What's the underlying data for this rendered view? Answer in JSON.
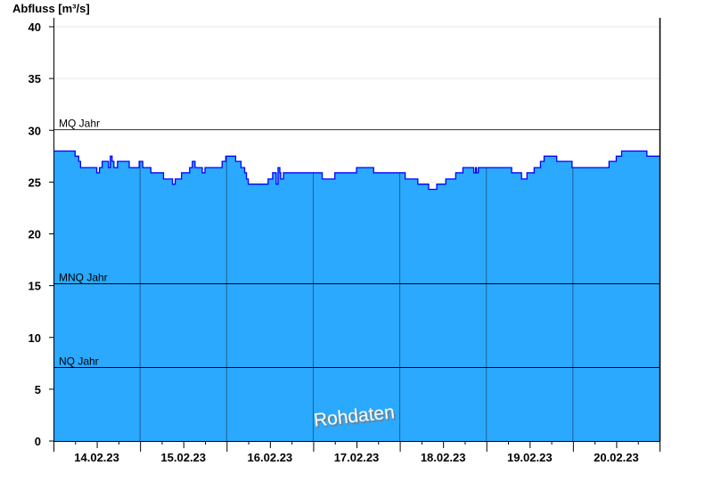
{
  "chart_data": {
    "type": "area",
    "ylabel": "Abfluss [m³/s]",
    "ylim": [
      0,
      40
    ],
    "yticks": [
      "0",
      "5",
      "10",
      "15",
      "20",
      "25",
      "30",
      "35",
      "40"
    ],
    "xlim": [
      "14.02.23 00:00",
      "21.02.23 00:00"
    ],
    "xtick_labels": [
      "14.02.23",
      "15.02.23",
      "16.02.23",
      "17.02.23",
      "18.02.23",
      "19.02.23",
      "20.02.23"
    ],
    "grid": true,
    "watermark": "Rohdaten",
    "colors": {
      "fill": "#2aa9ff",
      "line": "#0000ff",
      "mq": "#0a6e0a",
      "ref": "#000000"
    },
    "reference_lines": [
      {
        "label": "MQ Jahr",
        "value": 30.1
      },
      {
        "label": "MNQ Jahr",
        "value": 15.2
      },
      {
        "label": "NQ Jahr",
        "value": 7.1
      }
    ],
    "series": [
      {
        "step": true,
        "points": [
          [
            "14.02.23 00:00",
            28.0
          ],
          [
            "14.02.23 06:00",
            27.5
          ],
          [
            "14.02.23 07:00",
            27.0
          ],
          [
            "14.02.23 07:30",
            26.4
          ],
          [
            "14.02.23 12:00",
            25.9
          ],
          [
            "14.02.23 12:45",
            26.4
          ],
          [
            "14.02.23 13:30",
            27.0
          ],
          [
            "14.02.23 15:15",
            26.4
          ],
          [
            "14.02.23 15:45",
            27.5
          ],
          [
            "14.02.23 16:15",
            27.0
          ],
          [
            "14.02.23 16:45",
            26.4
          ],
          [
            "14.02.23 17:45",
            27.0
          ],
          [
            "14.02.23 21:00",
            26.4
          ],
          [
            "14.02.23 23:45",
            27.0
          ],
          [
            "15.02.23 00:45",
            26.4
          ],
          [
            "15.02.23 03:00",
            25.9
          ],
          [
            "15.02.23 06:30",
            25.3
          ],
          [
            "15.02.23 09:00",
            24.8
          ],
          [
            "15.02.23 09:45",
            25.3
          ],
          [
            "15.02.23 11:30",
            25.9
          ],
          [
            "15.02.23 13:45",
            26.4
          ],
          [
            "15.02.23 14:30",
            27.0
          ],
          [
            "15.02.23 15:15",
            26.4
          ],
          [
            "15.02.23 17:15",
            25.9
          ],
          [
            "15.02.23 18:00",
            26.4
          ],
          [
            "15.02.23 22:45",
            27.0
          ],
          [
            "15.02.23 23:45",
            27.5
          ],
          [
            "16.02.23 02:30",
            27.0
          ],
          [
            "16.02.23 04:00",
            26.4
          ],
          [
            "16.02.23 05:00",
            25.9
          ],
          [
            "16.02.23 05:30",
            25.3
          ],
          [
            "16.02.23 06:00",
            24.8
          ],
          [
            "16.02.23 11:30",
            25.3
          ],
          [
            "16.02.23 12:45",
            25.9
          ],
          [
            "16.02.23 13:45",
            24.8
          ],
          [
            "16.02.23 14:15",
            26.4
          ],
          [
            "16.02.23 14:45",
            25.9
          ],
          [
            "16.02.23 15:00",
            25.3
          ],
          [
            "16.02.23 15:45",
            25.9
          ],
          [
            "17.02.23 02:30",
            25.3
          ],
          [
            "17.02.23 06:00",
            25.9
          ],
          [
            "17.02.23 12:00",
            26.4
          ],
          [
            "17.02.23 16:45",
            25.9
          ],
          [
            "18.02.23 01:30",
            25.3
          ],
          [
            "18.02.23 05:00",
            24.8
          ],
          [
            "18.02.23 08:00",
            24.3
          ],
          [
            "18.02.23 10:15",
            24.8
          ],
          [
            "18.02.23 12:45",
            25.3
          ],
          [
            "18.02.23 15:30",
            25.9
          ],
          [
            "18.02.23 17:30",
            26.4
          ],
          [
            "18.02.23 20:30",
            25.9
          ],
          [
            "18.02.23 21:00",
            26.4
          ],
          [
            "18.02.23 21:15",
            25.9
          ],
          [
            "18.02.23 21:45",
            26.4
          ],
          [
            "19.02.23 07:00",
            25.9
          ],
          [
            "19.02.23 09:45",
            25.3
          ],
          [
            "19.02.23 11:15",
            25.9
          ],
          [
            "19.02.23 13:15",
            26.4
          ],
          [
            "19.02.23 15:00",
            27.0
          ],
          [
            "19.02.23 16:00",
            27.5
          ],
          [
            "19.02.23 19:30",
            27.0
          ],
          [
            "19.02.23 23:45",
            26.4
          ],
          [
            "20.02.23 10:00",
            27.0
          ],
          [
            "20.02.23 12:00",
            27.5
          ],
          [
            "20.02.23 13:30",
            28.0
          ],
          [
            "20.02.23 20:30",
            27.5
          ],
          [
            "21.02.23 00:00",
            27.5
          ]
        ]
      }
    ]
  }
}
